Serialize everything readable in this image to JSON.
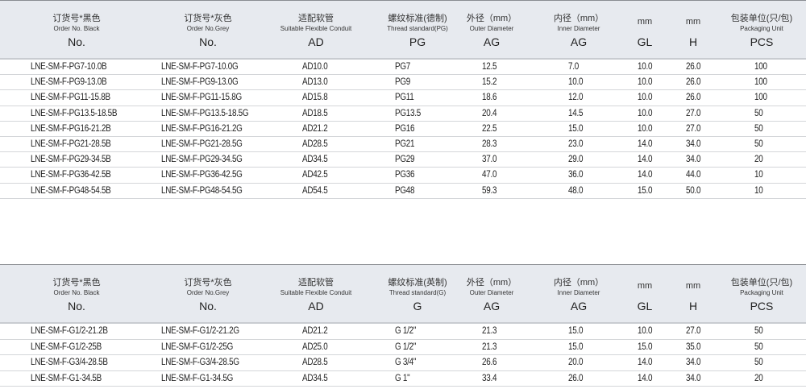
{
  "tables": [
    {
      "headers": [
        {
          "zh": "订货号*黑色",
          "en": "Order No. Black",
          "sym": "No."
        },
        {
          "zh": "订货号*灰色",
          "en": "Order No.Grey",
          "sym": "No."
        },
        {
          "zh": "适配软管",
          "en": "Suitable Flexible Conduit",
          "sym": "AD"
        },
        {
          "zh": "螺纹标准(德制)",
          "en": "Thread standard(PG)",
          "sym": "PG"
        },
        {
          "zh": "外径（mm）",
          "en": "Outer Diameter",
          "sym": "AG"
        },
        {
          "zh": "内径（mm）",
          "en": "Inner Diameter",
          "sym": "AG"
        },
        {
          "zh": "mm",
          "en": "",
          "sym": "GL"
        },
        {
          "zh": "mm",
          "en": "",
          "sym": "H"
        },
        {
          "zh": "包装单位(只/包)",
          "en": "Packaging Unit",
          "sym": "PCS"
        }
      ],
      "rows": [
        [
          "LNE-SM-F-PG7-10.0B",
          "LNE-SM-F-PG7-10.0G",
          "AD10.0",
          "PG7",
          "12.5",
          "7.0",
          "10.0",
          "26.0",
          "100"
        ],
        [
          "LNE-SM-F-PG9-13.0B",
          "LNE-SM-F-PG9-13.0G",
          "AD13.0",
          "PG9",
          "15.2",
          "10.0",
          "10.0",
          "26.0",
          "100"
        ],
        [
          "LNE-SM-F-PG11-15.8B",
          "LNE-SM-F-PG11-15.8G",
          "AD15.8",
          "PG11",
          "18.6",
          "12.0",
          "10.0",
          "26.0",
          "100"
        ],
        [
          "LNE-SM-F-PG13.5-18.5B",
          "LNE-SM-F-PG13.5-18.5G",
          "AD18.5",
          "PG13.5",
          "20.4",
          "14.5",
          "10.0",
          "27.0",
          "50"
        ],
        [
          "LNE-SM-F-PG16-21.2B",
          "LNE-SM-F-PG16-21.2G",
          "AD21.2",
          "PG16",
          "22.5",
          "15.0",
          "10.0",
          "27.0",
          "50"
        ],
        [
          "LNE-SM-F-PG21-28.5B",
          "LNE-SM-F-PG21-28.5G",
          "AD28.5",
          "PG21",
          "28.3",
          "23.0",
          "14.0",
          "34.0",
          "50"
        ],
        [
          "LNE-SM-F-PG29-34.5B",
          "LNE-SM-F-PG29-34.5G",
          "AD34.5",
          "PG29",
          "37.0",
          "29.0",
          "14.0",
          "34.0",
          "20"
        ],
        [
          "LNE-SM-F-PG36-42.5B",
          "LNE-SM-F-PG36-42.5G",
          "AD42.5",
          "PG36",
          "47.0",
          "36.0",
          "14.0",
          "44.0",
          "10"
        ],
        [
          "LNE-SM-F-PG48-54.5B",
          "LNE-SM-F-PG48-54.5G",
          "AD54.5",
          "PG48",
          "59.3",
          "48.0",
          "15.0",
          "50.0",
          "10"
        ]
      ]
    },
    {
      "headers": [
        {
          "zh": "订货号*黑色",
          "en": "Order No. Black",
          "sym": "No."
        },
        {
          "zh": "订货号*灰色",
          "en": "Order No.Grey",
          "sym": "No."
        },
        {
          "zh": "适配软管",
          "en": "Suitable Flexible Conduit",
          "sym": "AD"
        },
        {
          "zh": "螺纹标准(英制)",
          "en": "Thread standard(G)",
          "sym": "G"
        },
        {
          "zh": "外径（mm）",
          "en": "Outer Diameter",
          "sym": "AG"
        },
        {
          "zh": "内径（mm）",
          "en": "Inner Diameter",
          "sym": "AG"
        },
        {
          "zh": "mm",
          "en": "",
          "sym": "GL"
        },
        {
          "zh": "mm",
          "en": "",
          "sym": "H"
        },
        {
          "zh": "包装单位(只/包)",
          "en": "Packaging Unit",
          "sym": "PCS"
        }
      ],
      "rows": [
        [
          "LNE-SM-F-G1/2-21.2B",
          "LNE-SM-F-G1/2-21.2G",
          "AD21.2",
          "G 1/2\"",
          "21.3",
          "15.0",
          "10.0",
          "27.0",
          "50"
        ],
        [
          "LNE-SM-F-G1/2-25B",
          "LNE-SM-F-G1/2-25G",
          "AD25.0",
          "G 1/2\"",
          "21.3",
          "15.0",
          "15.0",
          "35.0",
          "50"
        ],
        [
          "LNE-SM-F-G3/4-28.5B",
          "LNE-SM-F-G3/4-28.5G",
          "AD28.5",
          "G 3/4\"",
          "26.6",
          "20.0",
          "14.0",
          "34.0",
          "50"
        ],
        [
          "LNE-SM-F-G1-34.5B",
          "LNE-SM-F-G1-34.5G",
          "AD34.5",
          "G 1\"",
          "33.4",
          "26.0",
          "14.0",
          "34.0",
          "20"
        ]
      ]
    }
  ]
}
